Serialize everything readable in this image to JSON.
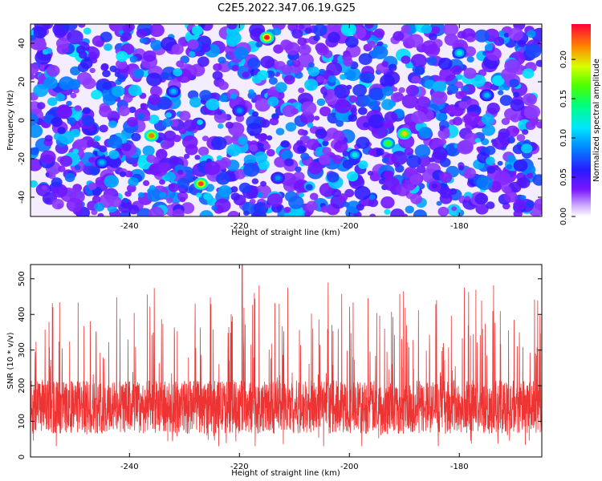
{
  "title": "C2E5.2022.347.06.19.G25",
  "chart_data": [
    {
      "type": "heatmap",
      "xlabel": "Height of straight line (km)",
      "ylabel": "Frequency (Hz)",
      "xlim": [
        -258,
        -165
      ],
      "ylim": [
        -50,
        50
      ],
      "xticks": [
        -240,
        -220,
        -200,
        -180
      ],
      "yticks": [
        -40,
        -20,
        0,
        20,
        40
      ],
      "colorbar": {
        "label": "Normalized spectral amplitude",
        "range": [
          0,
          0.245
        ],
        "ticks": [
          "0.00",
          "0.05",
          "0.10",
          "0.15",
          "0.20"
        ],
        "tick_values": [
          0,
          0.05,
          0.1,
          0.15,
          0.2
        ]
      },
      "hotspots": [
        {
          "x": -215,
          "y": 43,
          "v": 0.24
        },
        {
          "x": -227,
          "y": -33,
          "v": 0.23
        },
        {
          "x": -236,
          "y": -8,
          "v": 0.22
        },
        {
          "x": -190,
          "y": -7,
          "v": 0.2
        },
        {
          "x": -193,
          "y": -12,
          "v": 0.16
        },
        {
          "x": -199,
          "y": -18,
          "v": 0.12
        },
        {
          "x": -232,
          "y": 15,
          "v": 0.1
        },
        {
          "x": -220,
          "y": 5,
          "v": 0.09
        },
        {
          "x": -180,
          "y": 35,
          "v": 0.12
        },
        {
          "x": -175,
          "y": 13,
          "v": 0.1
        },
        {
          "x": -245,
          "y": -22,
          "v": 0.1
        },
        {
          "x": -213,
          "y": -30,
          "v": 0.09
        }
      ]
    },
    {
      "type": "line",
      "xlabel": "Height of straight line (km)",
      "ylabel": "SNR (10 * v/v)",
      "xlim": [
        -258,
        -165
      ],
      "ylim": [
        0,
        540
      ],
      "xticks": [
        -240,
        -220,
        -200,
        -180
      ],
      "yticks": [
        0,
        100,
        200,
        300,
        400,
        500
      ],
      "color": "#ee3333",
      "baseline_mean": 140,
      "peak": {
        "x": -219.5,
        "y": 540
      }
    }
  ]
}
